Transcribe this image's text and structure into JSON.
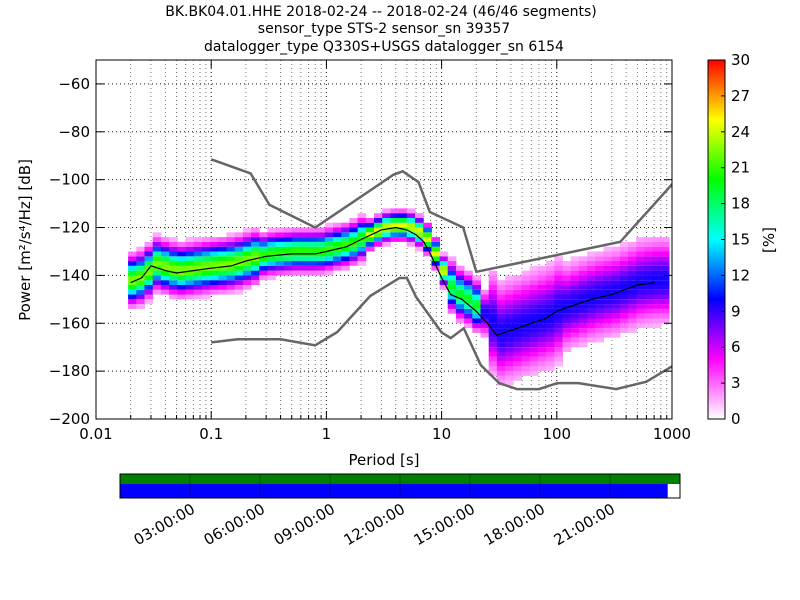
{
  "title_lines": [
    "BK.BK04.01.HHE   2018-02-24 -- 2018-02-24  (46/46 segments)",
    "sensor_type STS-2 sensor_sn 39357",
    "datalogger_type Q330S+USGS datalogger_sn 6154"
  ],
  "chart_data": {
    "type": "heatmap",
    "subtype": "probabilistic power spectral density",
    "xlabel": "Period [s]",
    "ylabel": "Power [m²/s⁴/Hz] [dB]",
    "x_scale": "log",
    "xlim": [
      0.01,
      1000
    ],
    "ylim": [
      -200,
      -50
    ],
    "x_ticks": [
      {
        "value": 0.01,
        "label": "0.01"
      },
      {
        "value": 0.1,
        "label": "0.1"
      },
      {
        "value": 1,
        "label": "1"
      },
      {
        "value": 10,
        "label": "10"
      },
      {
        "value": 100,
        "label": "100"
      },
      {
        "value": 1000,
        "label": "1000"
      }
    ],
    "y_ticks": [
      {
        "value": -60,
        "label": "−60"
      },
      {
        "value": -80,
        "label": "−80"
      },
      {
        "value": -100,
        "label": "−100"
      },
      {
        "value": -120,
        "label": "−120"
      },
      {
        "value": -140,
        "label": "−140"
      },
      {
        "value": -160,
        "label": "−160"
      },
      {
        "value": -180,
        "label": "−180"
      },
      {
        "value": -200,
        "label": "−200"
      }
    ],
    "grid": "dotted, vertical at log minor ticks",
    "colorbar": {
      "label": "[%]",
      "range": [
        0,
        30
      ],
      "ticks": [
        0,
        3,
        6,
        9,
        12,
        15,
        18,
        21,
        24,
        27,
        30
      ],
      "colors": [
        "#ffffff",
        "#ff00ff",
        "#0000ff",
        "#00ffff",
        "#00ff00",
        "#ffff00",
        "#ff0000"
      ]
    },
    "high_noise_model": {
      "period": [
        0.1,
        0.22,
        0.32,
        0.8,
        3.8,
        4.6,
        6.3,
        7.9,
        15.4,
        20,
        354.8,
        10000
      ],
      "power": [
        -91.5,
        -97.4,
        -110.5,
        -120,
        -98,
        -96.5,
        -101,
        -113.5,
        -120,
        -138.5,
        -126,
        -48.5
      ]
    },
    "low_noise_model": {
      "period": [
        0.1,
        0.17,
        0.4,
        0.8,
        1.24,
        2.4,
        4.3,
        5,
        6,
        10,
        12,
        15.6,
        21.9,
        31.6,
        45,
        70,
        101,
        154,
        328,
        600,
        1000
      ],
      "power": [
        -168,
        -166.7,
        -166.7,
        -169.2,
        -163.7,
        -148.6,
        -141.1,
        -141.1,
        -149,
        -163.8,
        -166.2,
        -162.1,
        -177.5,
        -185,
        -187.5,
        -187.5,
        -185,
        -185,
        -187.5,
        -184.4,
        -178
      ]
    },
    "mode_curve": {
      "period": [
        0.02,
        0.025,
        0.03,
        0.04,
        0.05,
        0.07,
        0.1,
        0.15,
        0.2,
        0.3,
        0.5,
        0.8,
        1,
        1.5,
        2,
        3,
        4,
        5,
        6,
        7,
        8,
        10,
        12,
        15,
        20,
        25,
        30,
        40,
        60,
        80,
        100,
        150,
        200,
        300,
        500,
        700
      ],
      "power": [
        -143,
        -141,
        -136,
        -138,
        -139,
        -138,
        -137,
        -136,
        -134,
        -132,
        -131,
        -131,
        -130,
        -128,
        -125,
        -121,
        -120,
        -121,
        -123,
        -126,
        -131,
        -141,
        -148,
        -150,
        -155,
        -160,
        -165,
        -163,
        -160,
        -158,
        -155,
        -152,
        -150,
        -148,
        -144,
        -143
      ]
    },
    "time_coverage": {
      "hours": 24,
      "covered_fraction_blue": 0.978,
      "tick_labels": [
        "03:00:00",
        "06:00:00",
        "09:00:00",
        "12:00:00",
        "15:00:00",
        "18:00:00",
        "21:00:00"
      ]
    }
  }
}
